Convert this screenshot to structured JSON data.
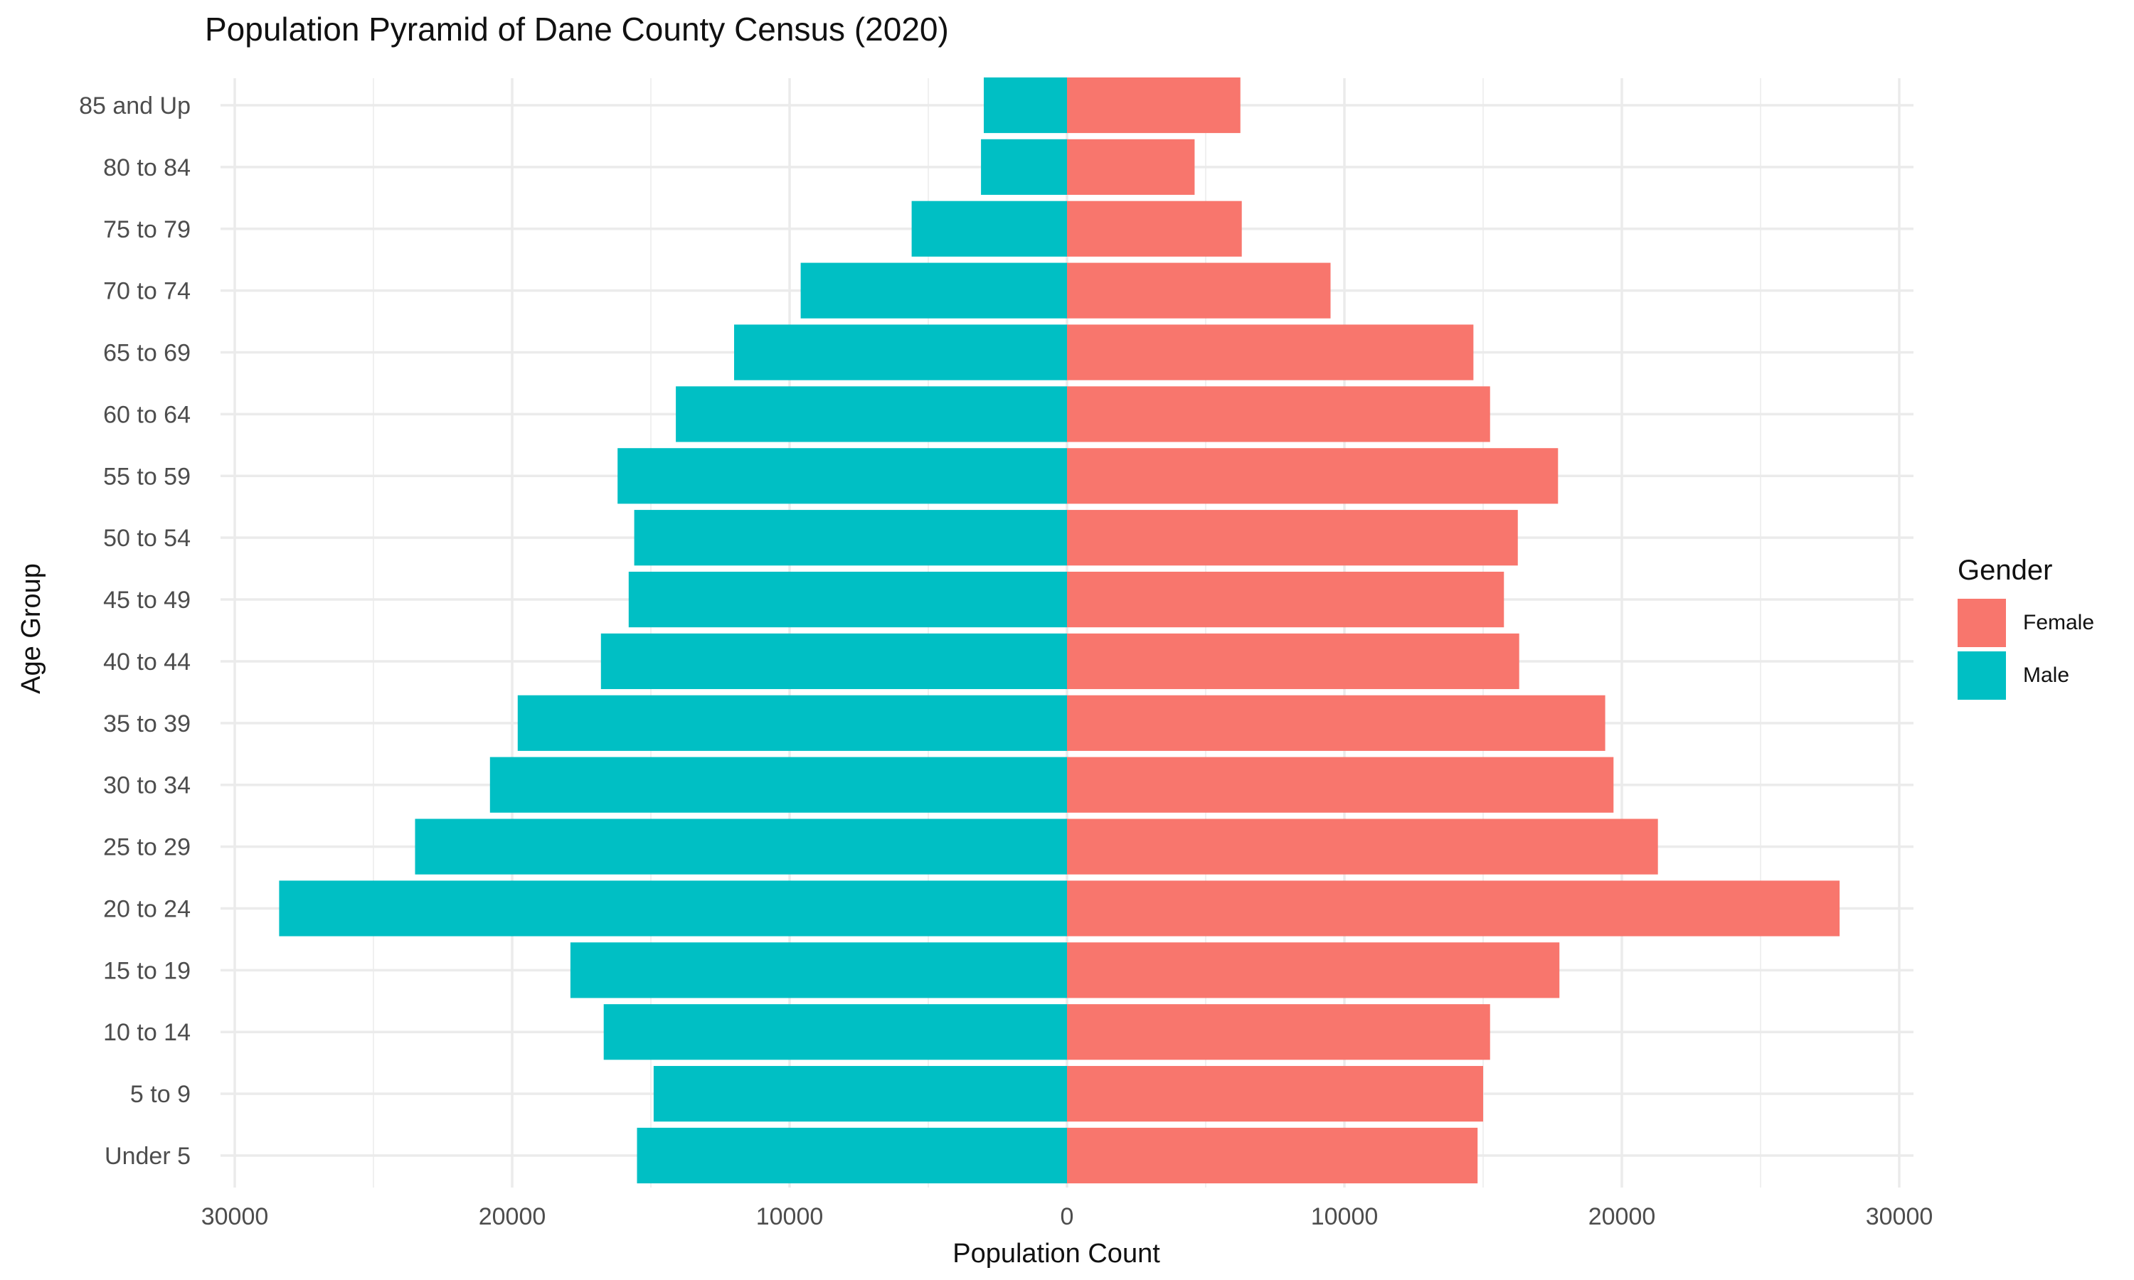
{
  "chart_data": {
    "type": "bar",
    "orientation": "horizontal",
    "title": "Population Pyramid of Dane County Census (2020)",
    "xlabel": "Population Count",
    "ylabel": "Age Group",
    "xlim": [
      -30000,
      30000
    ],
    "x_ticks": [
      -30000,
      -20000,
      -10000,
      0,
      10000,
      20000,
      30000
    ],
    "x_tick_labels": [
      "30000",
      "20000",
      "10000",
      "0",
      "10000",
      "20000",
      "30000"
    ],
    "categories": [
      "Under 5",
      "5 to 9",
      "10 to 14",
      "15 to 19",
      "20 to 24",
      "25 to 29",
      "30 to 34",
      "35 to 39",
      "40 to 44",
      "45 to 49",
      "50 to 54",
      "55 to 59",
      "60 to 64",
      "65 to 69",
      "70 to 74",
      "75 to 79",
      "80 to 84",
      "85 and Up"
    ],
    "series": [
      {
        "name": "Female",
        "color": "#F8766D",
        "values": [
          14800,
          15000,
          15250,
          17750,
          27850,
          21300,
          19700,
          19400,
          16300,
          15750,
          16250,
          17700,
          15250,
          14650,
          9500,
          6300,
          4600,
          6250
        ]
      },
      {
        "name": "Male",
        "color": "#00BFC4",
        "values": [
          -15500,
          -14900,
          -16700,
          -17900,
          -28400,
          -23500,
          -20800,
          -19800,
          -16800,
          -15800,
          -15600,
          -16200,
          -14100,
          -12000,
          -9600,
          -5600,
          -3100,
          -3000
        ]
      }
    ],
    "legend": {
      "title": "Gender",
      "position": "right",
      "items": [
        "Female",
        "Male"
      ]
    },
    "grid": true
  }
}
